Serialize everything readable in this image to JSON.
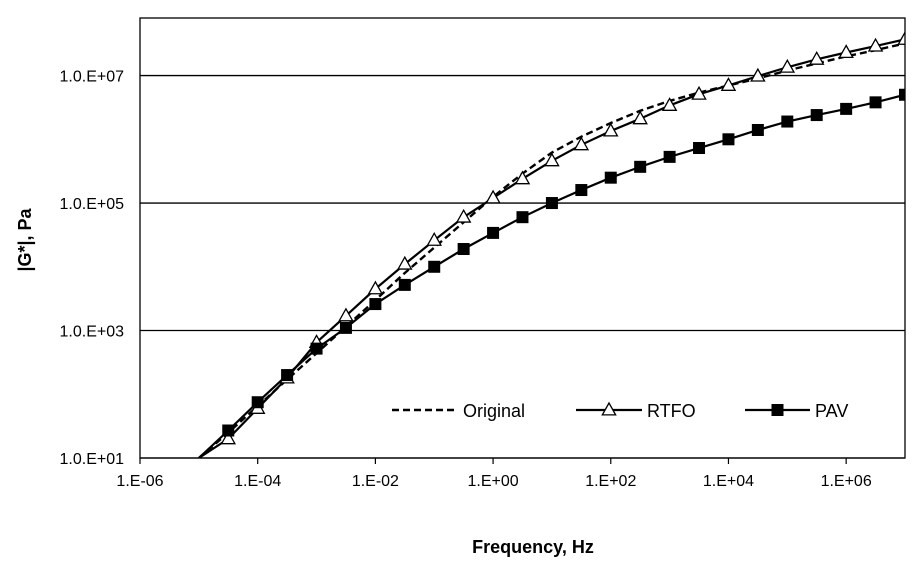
{
  "chart_data": {
    "type": "line",
    "title": "",
    "xlabel": "Frequency, Hz",
    "ylabel": "|G*|, Pa",
    "xscale": "log",
    "yscale": "log",
    "xlim": [
      1e-06,
      10000000
    ],
    "ylim": [
      10,
      80000000
    ],
    "x_ticks": [
      1e-06,
      0.0001,
      0.01,
      1,
      100,
      10000,
      1000000
    ],
    "x_tick_labels": [
      "1.E-06",
      "1.E-04",
      "1.E-02",
      "1.E+00",
      "1.E+02",
      "1.E+04",
      "1.E+06"
    ],
    "y_ticks": [
      10,
      1000,
      100000,
      10000000
    ],
    "y_tick_labels": [
      "1.0.E+01",
      "1.0.E+03",
      "1.0.E+05",
      "1.0.E+07"
    ],
    "grid": "horizontal",
    "legend_position": "bottom-right",
    "series": [
      {
        "name": "Original",
        "style": "dashed",
        "marker": "none",
        "x": [
          1e-05,
          3.16e-05,
          0.0001,
          0.000316,
          0.001,
          0.00316,
          0.01,
          0.0316,
          0.1,
          0.316,
          1,
          3.16,
          10,
          31.6,
          100,
          316,
          1000,
          3160,
          10000,
          31600,
          100000,
          316000,
          1000000,
          3160000,
          10000000
        ],
        "values": [
          10,
          25,
          65,
          170,
          440,
          1150,
          3000,
          8000,
          20000,
          50000,
          125000,
          290000,
          620000,
          1100000,
          1800000,
          2800000,
          4000000,
          5400000,
          7000000,
          9000000,
          12000000,
          15500000,
          20000000,
          25000000,
          32000000
        ]
      },
      {
        "name": "RTFO",
        "style": "solid",
        "marker": "open-triangle",
        "x": [
          1e-05,
          3.16e-05,
          0.0001,
          0.000316,
          0.001,
          0.00316,
          0.01,
          0.0316,
          0.1,
          0.316,
          1,
          3.16,
          10,
          31.6,
          100,
          316,
          1000,
          3160,
          10000,
          31600,
          100000,
          316000,
          1000000,
          3160000,
          10000000
        ],
        "values": [
          10,
          20,
          60,
          180,
          650,
          1700,
          4500,
          11000,
          26000,
          60000,
          120000,
          240000,
          460000,
          820000,
          1350000,
          2100000,
          3400000,
          5100000,
          7000000,
          9800000,
          13500000,
          18000000,
          23000000,
          29000000,
          37000000
        ]
      },
      {
        "name": "PAV",
        "style": "solid",
        "marker": "filled-square",
        "x": [
          1e-05,
          3.16e-05,
          0.0001,
          0.000316,
          0.001,
          0.00316,
          0.01,
          0.0316,
          0.1,
          0.316,
          1,
          3.16,
          10,
          31.6,
          100,
          316,
          1000,
          3160,
          10000,
          31600,
          100000,
          316000,
          1000000,
          3160000,
          10000000
        ],
        "values": [
          10,
          27,
          75,
          200,
          520,
          1100,
          2600,
          5200,
          10000,
          19000,
          34000,
          60000,
          100000,
          160000,
          250000,
          370000,
          530000,
          730000,
          1000000,
          1400000,
          1900000,
          2400000,
          3000000,
          3800000,
          5000000
        ]
      }
    ]
  }
}
